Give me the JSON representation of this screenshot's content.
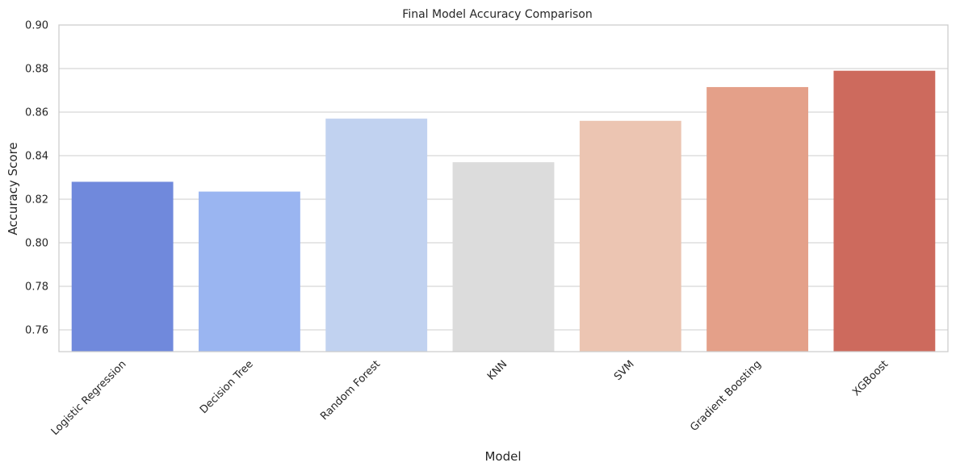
{
  "chart_data": {
    "type": "bar",
    "title": "Final Model Accuracy Comparison",
    "xlabel": "Model",
    "ylabel": "Accuracy Score",
    "categories": [
      "Logistic Regression",
      "Decision Tree",
      "Random Forest",
      "KNN",
      "SVM",
      "Gradient Boosting",
      "XGBoost"
    ],
    "values": [
      0.828,
      0.8235,
      0.857,
      0.837,
      0.856,
      0.8715,
      0.879
    ],
    "colors": [
      "#7089dc",
      "#9ab5f1",
      "#c1d2f0",
      "#dcdcdc",
      "#ecc5b2",
      "#e4a089",
      "#cd6a5d"
    ],
    "ylim": [
      0.75,
      0.9
    ],
    "yticks": [
      0.76,
      0.78,
      0.8,
      0.82,
      0.84,
      0.86,
      0.88,
      0.9
    ],
    "ytick_labels": [
      "0.76",
      "0.78",
      "0.80",
      "0.82",
      "0.84",
      "0.86",
      "0.88",
      "0.90"
    ],
    "grid": "horizontal",
    "legend": "none"
  }
}
